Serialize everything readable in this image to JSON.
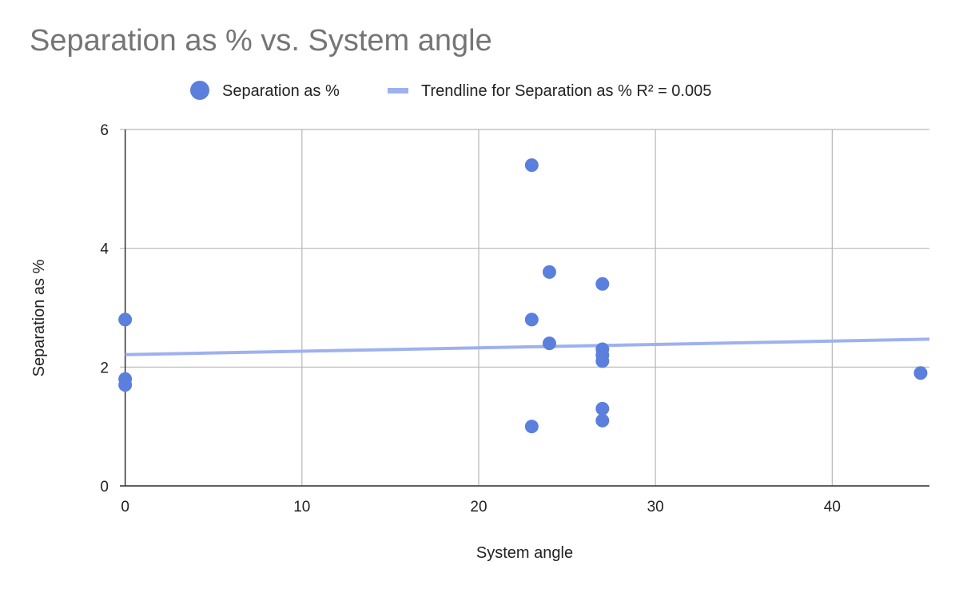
{
  "chart_data": {
    "type": "scatter",
    "title": "Separation as % vs. System angle",
    "xlabel": "System angle",
    "ylabel": "Separation as %",
    "xlim": [
      -0.3,
      45.5
    ],
    "ylim": [
      0,
      6
    ],
    "x_ticks": [
      0,
      10,
      20,
      30,
      40
    ],
    "y_ticks": [
      0,
      2,
      4,
      6
    ],
    "grid": true,
    "legend_position": "top",
    "series": [
      {
        "name": "Separation as %",
        "color": "#5b7fdc",
        "points": [
          {
            "x": 0,
            "y": 2.8
          },
          {
            "x": 0,
            "y": 1.8
          },
          {
            "x": 0,
            "y": 1.7
          },
          {
            "x": 23,
            "y": 5.4
          },
          {
            "x": 23,
            "y": 2.8
          },
          {
            "x": 23,
            "y": 1.0
          },
          {
            "x": 24,
            "y": 3.6
          },
          {
            "x": 24,
            "y": 2.4
          },
          {
            "x": 27,
            "y": 3.4
          },
          {
            "x": 27,
            "y": 2.3
          },
          {
            "x": 27,
            "y": 2.2
          },
          {
            "x": 27,
            "y": 2.1
          },
          {
            "x": 27,
            "y": 1.3
          },
          {
            "x": 27,
            "y": 1.1
          },
          {
            "x": 45,
            "y": 1.9
          }
        ]
      }
    ],
    "trendline": {
      "name": "Trendline for Separation as % R² = 0.005",
      "color": "#9eb1ef",
      "type": "linear",
      "start": {
        "x": 0,
        "y": 2.21
      },
      "end": {
        "x": 45.5,
        "y": 2.47
      }
    }
  }
}
